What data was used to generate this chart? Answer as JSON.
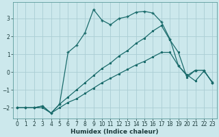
{
  "xlabel": "Humidex (Indice chaleur)",
  "bg_color": "#cce8ec",
  "grid_color": "#aacdd4",
  "line_color": "#1a6b6b",
  "xlim": [
    -0.5,
    23.5
  ],
  "ylim": [
    -2.6,
    3.9
  ],
  "xticks": [
    0,
    1,
    2,
    3,
    4,
    5,
    6,
    7,
    8,
    9,
    10,
    11,
    12,
    13,
    14,
    15,
    16,
    17,
    18,
    19,
    20,
    21,
    22,
    23
  ],
  "yticks": [
    -2,
    -1,
    0,
    1,
    2,
    3
  ],
  "series1_x": [
    0,
    1,
    2,
    3,
    4,
    5,
    6,
    7,
    8,
    9,
    10,
    11,
    12,
    13,
    14,
    15,
    16,
    17,
    18,
    19,
    20,
    21,
    22,
    23
  ],
  "series1_y": [
    -2.0,
    -2.0,
    -2.0,
    -2.0,
    -2.3,
    -2.0,
    -1.7,
    -1.5,
    -1.2,
    -0.9,
    -0.6,
    -0.35,
    -0.1,
    0.15,
    0.4,
    0.6,
    0.85,
    1.1,
    1.1,
    0.35,
    -0.15,
    -0.5,
    0.05,
    -0.55
  ],
  "series2_x": [
    0,
    1,
    2,
    3,
    4,
    5,
    6,
    7,
    8,
    9,
    10,
    11,
    12,
    13,
    14,
    15,
    16,
    17,
    18,
    19,
    20,
    21,
    22,
    23
  ],
  "series2_y": [
    -2.0,
    -2.0,
    -2.0,
    -1.9,
    -2.3,
    -1.8,
    -1.4,
    -1.0,
    -0.6,
    -0.2,
    0.2,
    0.5,
    0.9,
    1.2,
    1.6,
    1.9,
    2.3,
    2.6,
    1.8,
    1.1,
    -0.3,
    0.1,
    0.1,
    -0.6
  ],
  "series3_x": [
    0,
    1,
    2,
    3,
    4,
    5,
    6,
    7,
    8,
    9,
    10,
    11,
    12,
    13,
    14,
    15,
    16,
    17,
    18,
    19,
    20,
    21,
    22,
    23
  ],
  "series3_y": [
    -2.0,
    -2.0,
    -2.0,
    -1.9,
    -2.3,
    -1.8,
    1.1,
    1.5,
    2.2,
    3.5,
    2.9,
    2.65,
    3.0,
    3.1,
    3.35,
    3.4,
    3.3,
    2.8,
    1.85,
    0.35,
    -0.2,
    0.1,
    0.1,
    -0.6
  ]
}
